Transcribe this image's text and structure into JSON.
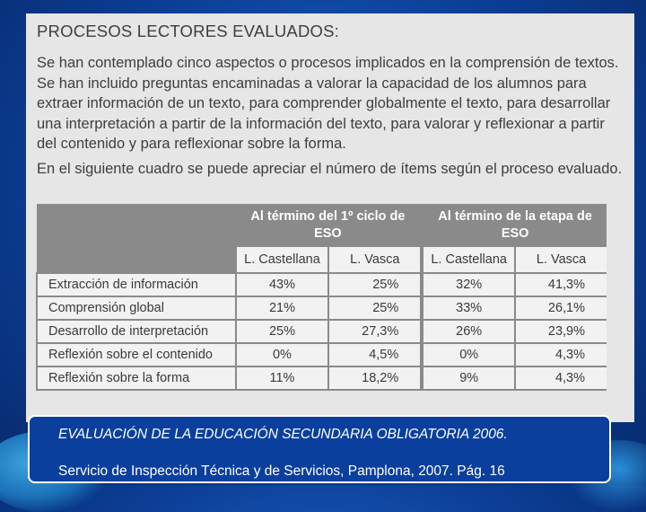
{
  "document": {
    "heading": "PROCESOS LECTORES EVALUADOS:",
    "paragraph1": "Se han contemplado cinco aspectos o procesos implicados en la comprensión de textos. Se han incluido preguntas encaminadas a valorar la capacidad de los alumnos para extraer información de un texto, para comprender globalmente el texto, para desarrollar una interpretación a partir de la información del texto, para valorar y reflexionar a partir del contenido y para reflexionar sobre la forma.",
    "paragraph2": "En el siguiente cuadro se puede apreciar el número de ítems según el proceso evaluado."
  },
  "table": {
    "group_headers": [
      "Al término del 1º ciclo de ESO",
      "Al término de la etapa de ESO"
    ],
    "sub_headers": [
      "L. Castellana",
      "L. Vasca",
      "L. Castellana",
      "L. Vasca"
    ],
    "rows": [
      {
        "label": "Extracción de información",
        "values": [
          "43%",
          "25%",
          "32%",
          "41,3%"
        ]
      },
      {
        "label": "Comprensión global",
        "values": [
          "21%",
          "25%",
          "33%",
          "26,1%"
        ]
      },
      {
        "label": "Desarrollo de interpretación",
        "values": [
          "25%",
          "27,3%",
          "26%",
          "23,9%"
        ]
      },
      {
        "label": "Reflexión sobre el contenido",
        "values": [
          "0%",
          "4,5%",
          "0%",
          "4,3%"
        ]
      },
      {
        "label": "Reflexión sobre la forma",
        "values": [
          "11%",
          "18,2%",
          "9%",
          "4,3%"
        ]
      }
    ]
  },
  "caption": {
    "line1": "EVALUACIÓN DE LA EDUCACIÓN SECUNDARIA OBLIGATORIA 2006.",
    "line2": "Servicio de Inspección Técnica y de Servicios, Pamplona, 2007. Pág. 16"
  },
  "colors": {
    "background": "#0c3f98",
    "caption_box": "#0b3f9d",
    "table_header": "#8a8a8a"
  }
}
